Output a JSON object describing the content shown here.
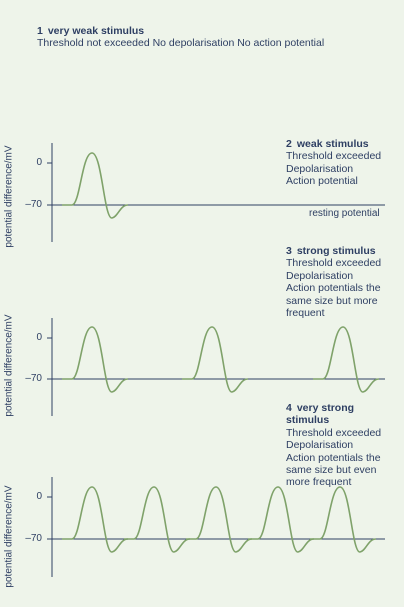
{
  "panels": [
    {
      "number": "1",
      "heading": "very weak stimulus",
      "lines": [
        "Threshold not exceeded No depolarisation No action potential"
      ]
    },
    {
      "number": "2",
      "heading": "weak stimulus",
      "lines": [
        "Threshold exceeded",
        "Depolarisation",
        "Action potential"
      ],
      "ylabel": "potential difference/mV",
      "ticks": [
        "0",
        "–70"
      ],
      "resting_label": "resting potential",
      "spike_count": 1
    },
    {
      "number": "3",
      "heading": "strong stimulus",
      "lines": [
        "Threshold exceeded",
        "Depolarisation",
        "Action potentials the same size but more frequent"
      ],
      "ylabel": "potential difference/mV",
      "ticks": [
        "0",
        "–70"
      ],
      "spike_count": 3
    },
    {
      "number": "4",
      "heading": "very strong stimulus",
      "lines": [
        "Threshold exceeded",
        "Depolarisation",
        "Action potentials the same size but even more frequent"
      ],
      "ylabel": "potential difference/mV",
      "ticks": [
        "0",
        "–70"
      ],
      "spike_count": 5
    }
  ],
  "colors": {
    "text": "#2e3f63",
    "axis": "#2e3f63",
    "trace": "#7fa26a",
    "background": "#eef4ea"
  }
}
